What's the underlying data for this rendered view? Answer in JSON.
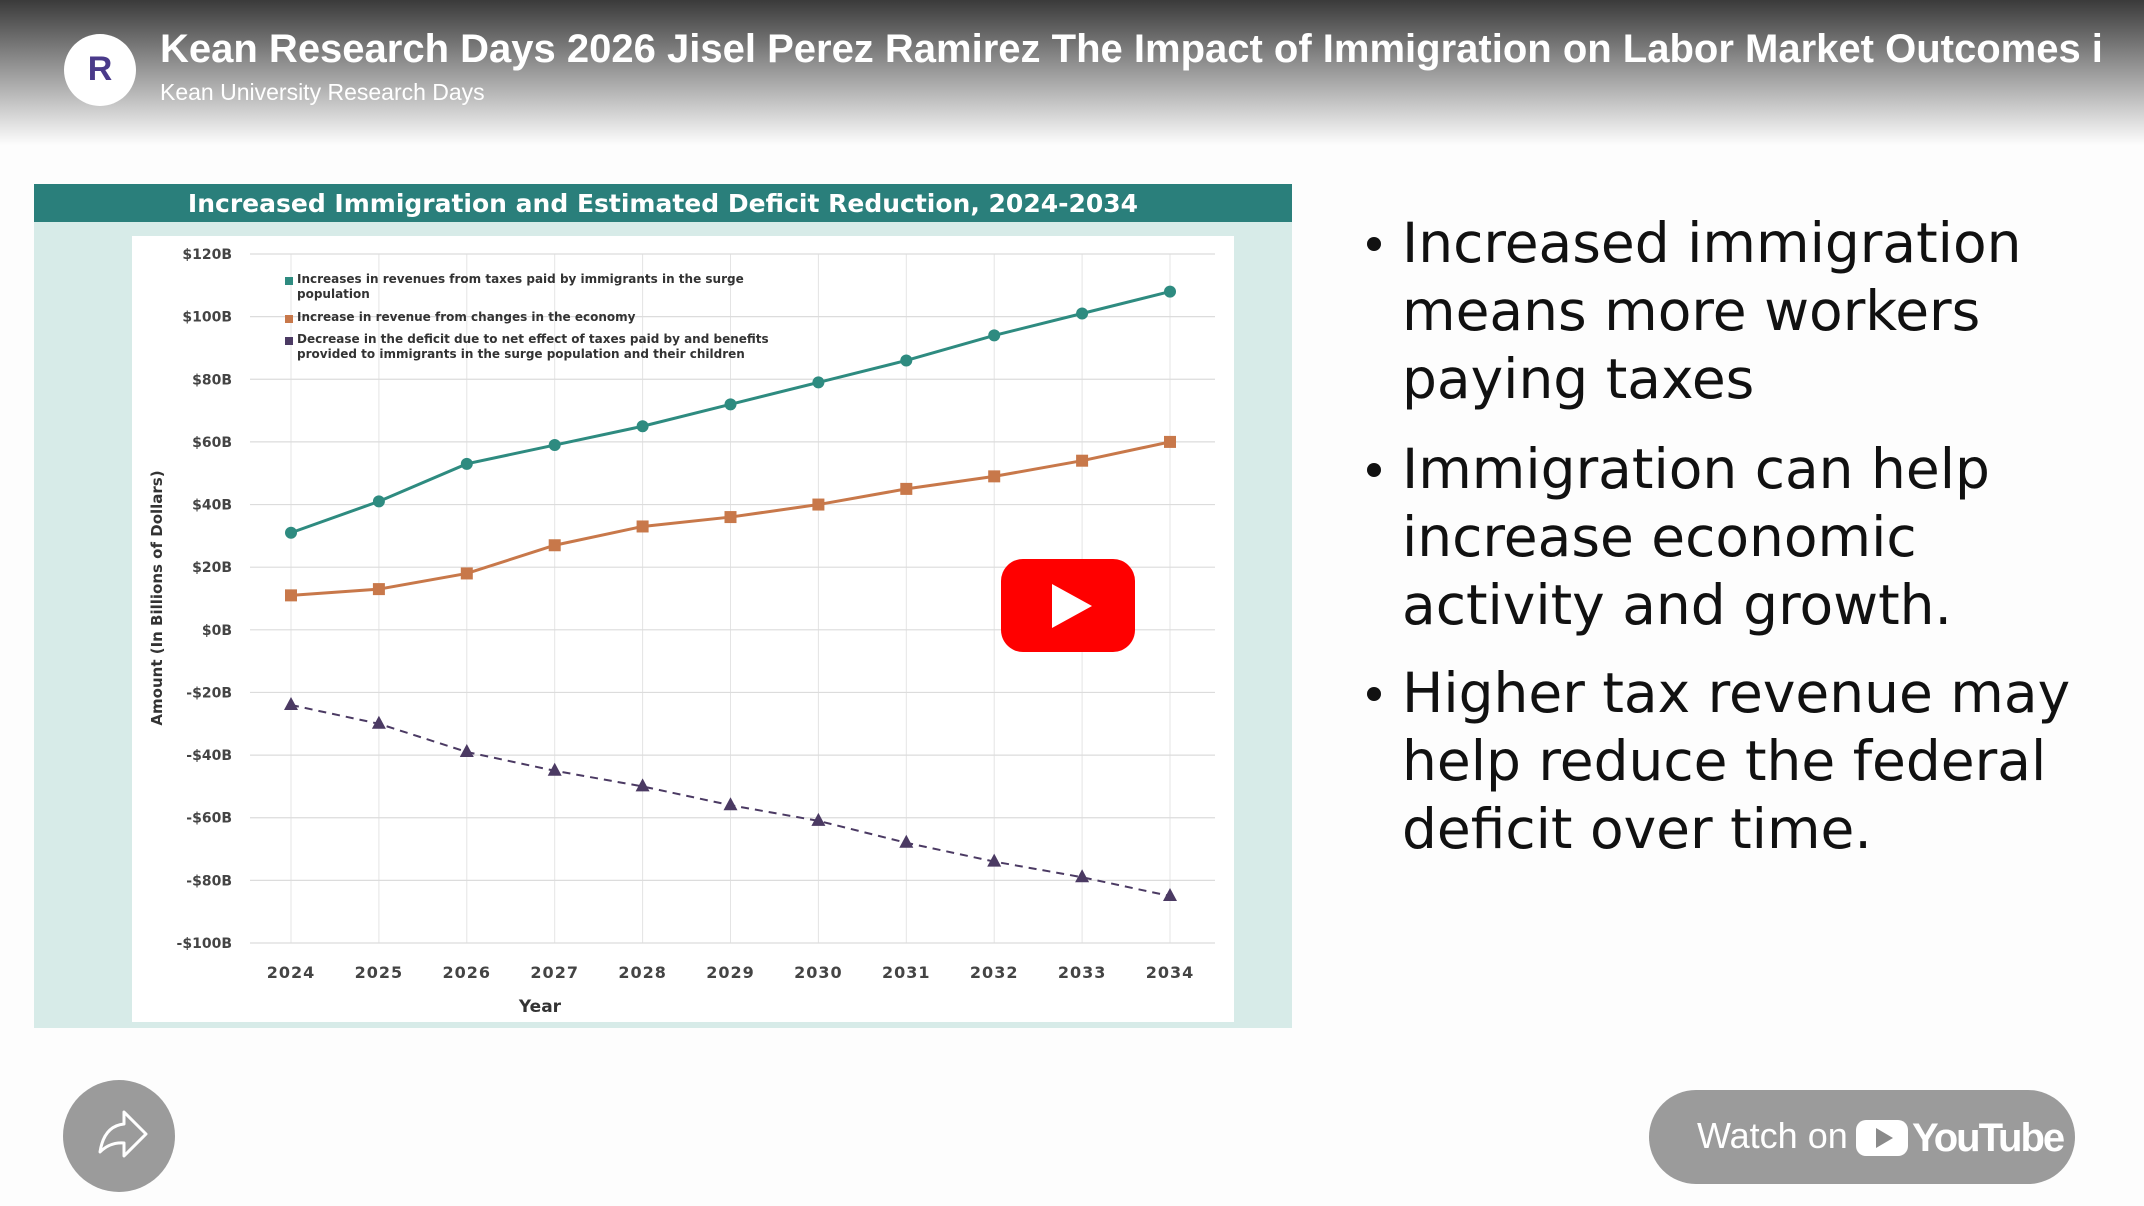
{
  "header": {
    "title": "Kean Research Days 2026 Jisel Perez Ramirez The Impact of Immigration on Labor Market Outcomes i",
    "channel": "Kean University Research Days"
  },
  "chart_data": {
    "type": "line",
    "title": "Increased Immigration and Estimated Deficit Reduction, 2024-2034",
    "x_label": "Year",
    "y_label": "Amount (In Billions of Dollars)",
    "categories": [
      "2024",
      "2025",
      "2026",
      "2027",
      "2028",
      "2029",
      "2030",
      "2031",
      "2032",
      "2033",
      "2034"
    ],
    "series": [
      {
        "name": "Increases in revenues from taxes paid by immigrants in the surge population",
        "color": "#2e8b80",
        "marker": "circle",
        "dashed": false,
        "values": [
          31,
          41,
          53,
          59,
          65,
          72,
          79,
          86,
          94,
          101,
          108
        ]
      },
      {
        "name": "Increase in revenue from changes in the economy",
        "color": "#c8784a",
        "marker": "square",
        "dashed": false,
        "values": [
          11,
          13,
          18,
          27,
          33,
          36,
          40,
          45,
          49,
          54,
          60
        ]
      },
      {
        "name": "Decrease in the deficit due to net effect of taxes paid by and benefits provided to immigrants in the surge population and their children",
        "color": "#4b3a63",
        "marker": "triangle",
        "dashed": true,
        "values": [
          -24,
          -30,
          -39,
          -45,
          -50,
          -56,
          -61,
          -68,
          -74,
          -79,
          -85
        ]
      }
    ],
    "ylim": [
      -100,
      120
    ],
    "yticks": [
      {
        "value": 120,
        "label": "$120B"
      },
      {
        "value": 100,
        "label": "$100B"
      },
      {
        "value": 80,
        "label": "$80B"
      },
      {
        "value": 60,
        "label": "$60B"
      },
      {
        "value": 40,
        "label": "$40B"
      },
      {
        "value": 20,
        "label": "$20B"
      },
      {
        "value": 0,
        "label": "$0B"
      },
      {
        "value": -20,
        "label": "-$20B"
      },
      {
        "value": -40,
        "label": "-$40B"
      },
      {
        "value": -60,
        "label": "-$60B"
      },
      {
        "value": -80,
        "label": "-$80B"
      },
      {
        "value": -100,
        "label": "-$100B"
      }
    ],
    "grid": true,
    "legend": "top-left"
  },
  "bullets": [
    [
      "Increased immigration",
      "means more workers",
      "paying taxes"
    ],
    [
      "Immigration can help",
      "increase economic",
      "activity and growth."
    ],
    [
      "Higher tax revenue may",
      "help reduce the federal",
      "deficit over time."
    ]
  ],
  "watch": {
    "label": "Watch on",
    "brand": "YouTube"
  }
}
